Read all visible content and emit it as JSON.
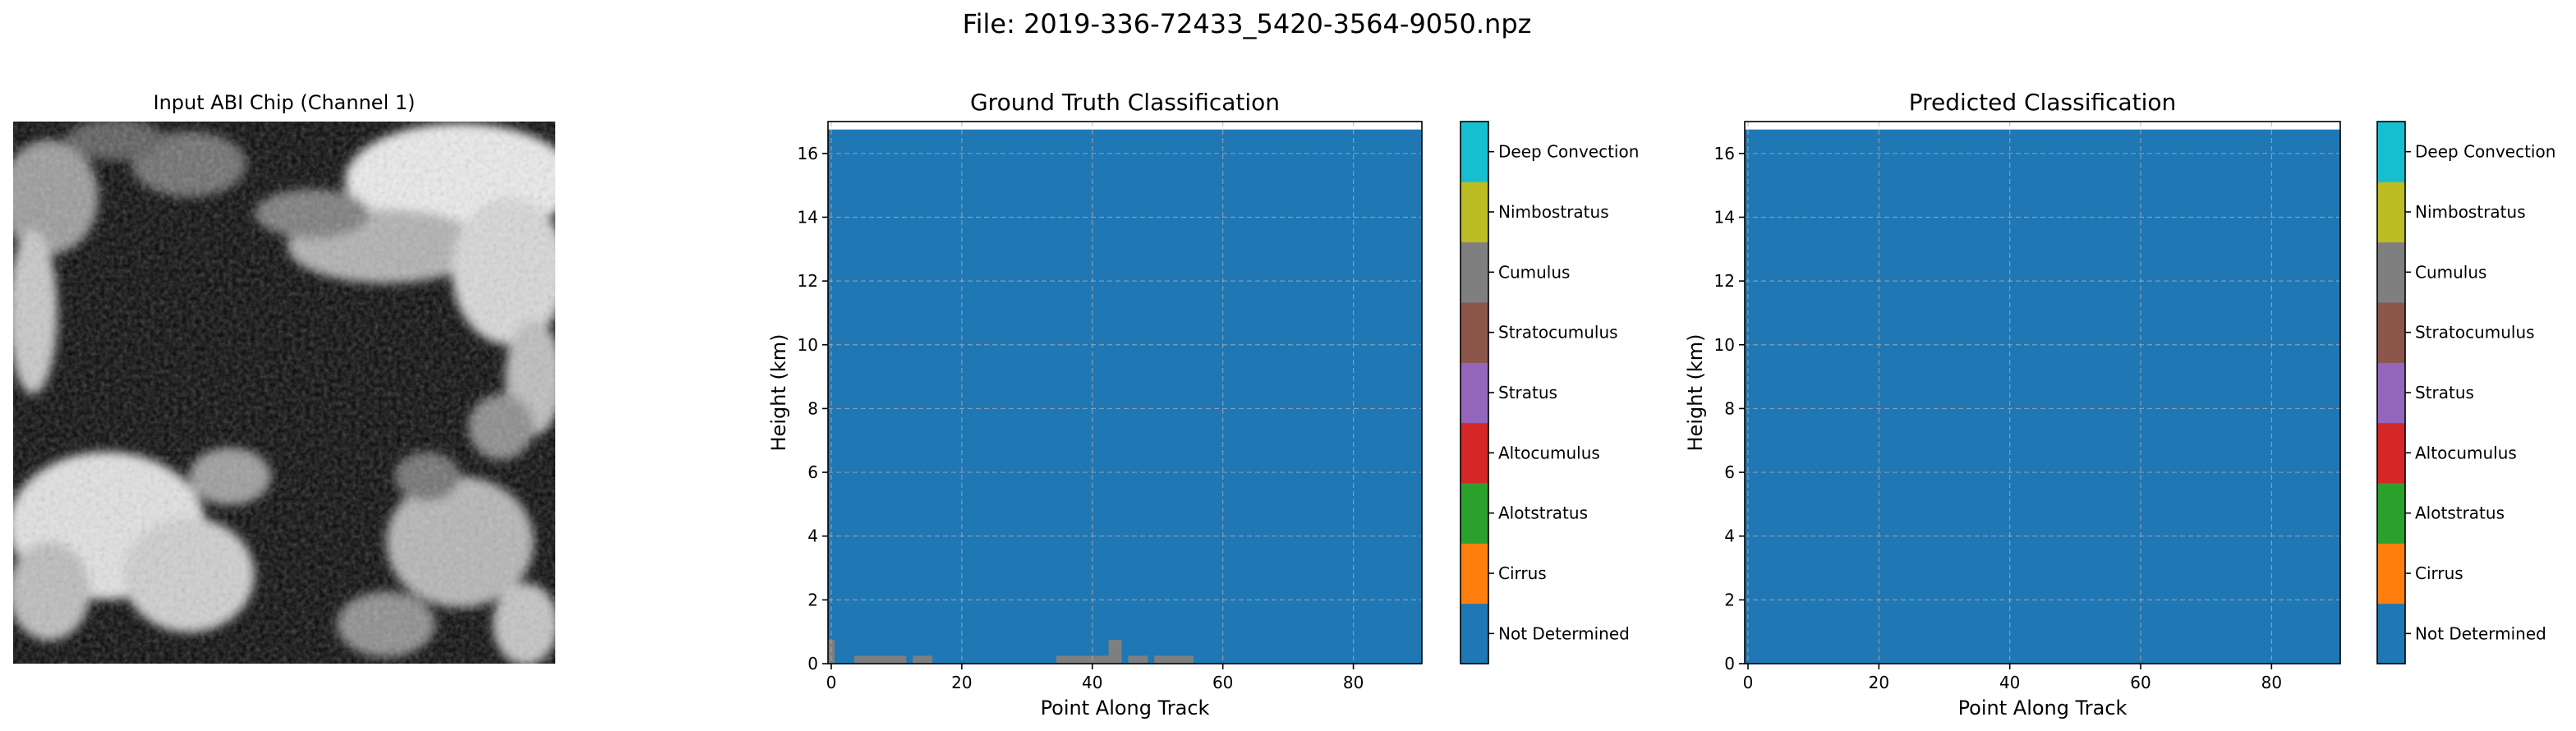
{
  "figure_title": "File: 2019-336-72433_5420-3564-9050.npz",
  "image_panel": {
    "title": "Input ABI Chip (Channel 1)"
  },
  "chart_data": [
    {
      "type": "heatmap",
      "title": "Ground Truth Classification",
      "xlabel": "Point Along Track",
      "ylabel": "Height (km)",
      "xlim": [
        -0.5,
        90.5
      ],
      "ylim": [
        0,
        17
      ],
      "x_ticks": [
        0,
        20,
        40,
        60,
        80
      ],
      "y_ticks": [
        0,
        2,
        4,
        6,
        8,
        10,
        12,
        14,
        16
      ],
      "grid": true,
      "data_top_km": 16.75,
      "background_class": "Not Determined",
      "class_cells": [
        {
          "class": "Cumulus",
          "x_from": -0.5,
          "x_to": 0.5,
          "y_from": 0,
          "y_to": 0.75
        },
        {
          "class": "Cumulus",
          "x_from": 3.5,
          "x_to": 11.5,
          "y_from": 0,
          "y_to": 0.25
        },
        {
          "class": "Cumulus",
          "x_from": 12.5,
          "x_to": 15.5,
          "y_from": 0,
          "y_to": 0.25
        },
        {
          "class": "Cumulus",
          "x_from": 34.5,
          "x_to": 42.5,
          "y_from": 0,
          "y_to": 0.25
        },
        {
          "class": "Cumulus",
          "x_from": 42.5,
          "x_to": 44.5,
          "y_from": 0,
          "y_to": 0.75
        },
        {
          "class": "Cumulus",
          "x_from": 45.5,
          "x_to": 48.5,
          "y_from": 0,
          "y_to": 0.25
        },
        {
          "class": "Cumulus",
          "x_from": 49.5,
          "x_to": 55.5,
          "y_from": 0,
          "y_to": 0.25
        }
      ]
    },
    {
      "type": "heatmap",
      "title": "Predicted Classification",
      "xlabel": "Point Along Track",
      "ylabel": "Height (km)",
      "xlim": [
        -0.5,
        90.5
      ],
      "ylim": [
        0,
        17
      ],
      "x_ticks": [
        0,
        20,
        40,
        60,
        80
      ],
      "y_ticks": [
        0,
        2,
        4,
        6,
        8,
        10,
        12,
        14,
        16
      ],
      "grid": true,
      "data_top_km": 16.75,
      "background_class": "Not Determined",
      "class_cells": []
    }
  ],
  "colorbar": {
    "classes": [
      {
        "label": "Not Determined",
        "color": "#1f77b4"
      },
      {
        "label": "Cirrus",
        "color": "#ff7f0e"
      },
      {
        "label": "Alotstratus",
        "color": "#2ca02c"
      },
      {
        "label": "Altocumulus",
        "color": "#d62728"
      },
      {
        "label": "Stratus",
        "color": "#9467bd"
      },
      {
        "label": "Stratocumulus",
        "color": "#8c564b"
      },
      {
        "label": "Cumulus",
        "color": "#7f7f7f"
      },
      {
        "label": "Nimbostratus",
        "color": "#bcbd22"
      },
      {
        "label": "Deep Convection",
        "color": "#17becf"
      }
    ]
  }
}
